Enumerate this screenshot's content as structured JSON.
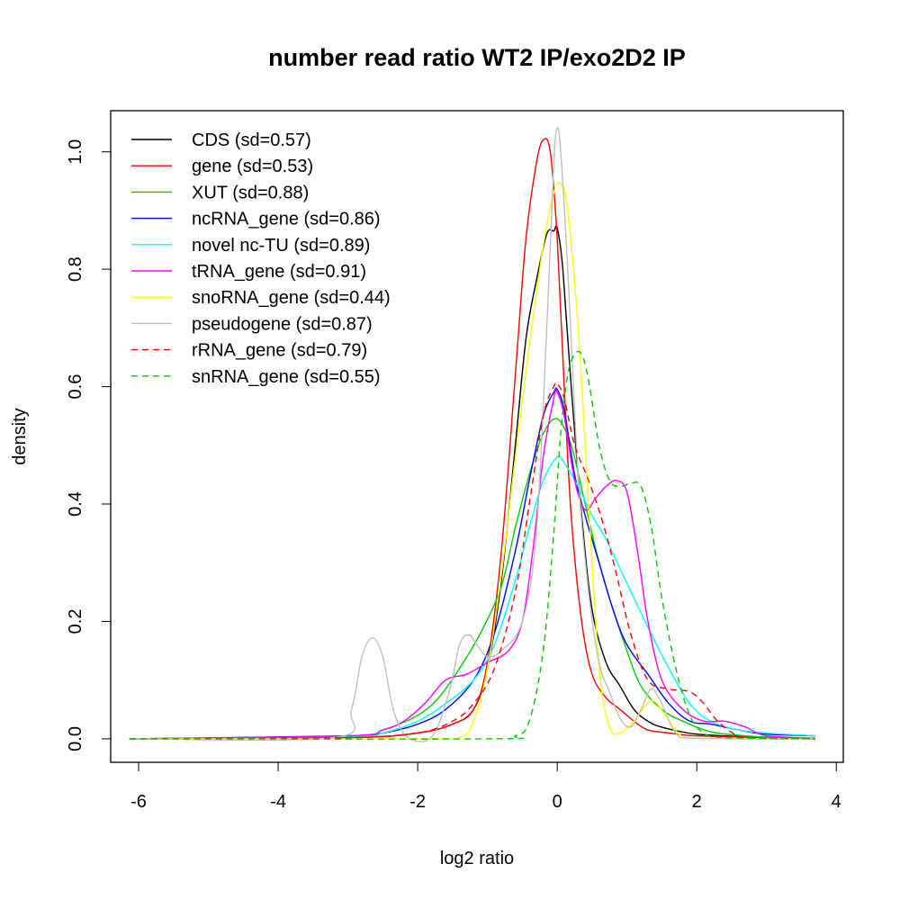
{
  "chart_data": {
    "type": "line",
    "title": "number read ratio WT2 IP/exo2D2 IP",
    "xlabel": "log2 ratio",
    "ylabel": "density",
    "xlim": [
      -6.4,
      4.1
    ],
    "ylim": [
      -0.04,
      1.07
    ],
    "xticks": [
      -6,
      -4,
      -2,
      0,
      2,
      4
    ],
    "xtick_labels": [
      "-6",
      "-4",
      "-2",
      "0",
      "2",
      "4"
    ],
    "yticks": [
      0.0,
      0.2,
      0.4,
      0.6,
      0.8,
      1.0
    ],
    "ytick_labels": [
      "0.0",
      "0.2",
      "0.4",
      "0.6",
      "0.8",
      "1.0"
    ],
    "grid": false,
    "legend_position": "top-left",
    "series": [
      {
        "name": "CDS (sd=0.57)",
        "color": "#000000",
        "dash": false,
        "x": [
          -6.13,
          -3,
          -2,
          -1.5,
          -1.2,
          -1.0,
          -0.8,
          -0.6,
          -0.45,
          -0.3,
          -0.15,
          -0.05,
          0.0,
          0.08,
          0.2,
          0.35,
          0.5,
          0.7,
          0.9,
          1.1,
          1.3,
          1.5,
          2.0,
          3.0,
          3.7
        ],
        "y": [
          0,
          0.002,
          0.01,
          0.025,
          0.05,
          0.12,
          0.27,
          0.5,
          0.68,
          0.78,
          0.86,
          0.865,
          0.87,
          0.8,
          0.6,
          0.38,
          0.22,
          0.13,
          0.09,
          0.05,
          0.03,
          0.02,
          0.008,
          0.002,
          0
        ]
      },
      {
        "name": "gene (sd=0.53)",
        "color": "#FF0000",
        "dash": false,
        "x": [
          -6.13,
          -3,
          -2,
          -1.5,
          -1.2,
          -1.0,
          -0.8,
          -0.6,
          -0.45,
          -0.3,
          -0.2,
          -0.1,
          0.0,
          0.1,
          0.2,
          0.35,
          0.5,
          0.7,
          0.9,
          1.1,
          1.3,
          1.6,
          2.0,
          3.0,
          3.7
        ],
        "y": [
          0,
          0.002,
          0.01,
          0.025,
          0.05,
          0.13,
          0.32,
          0.62,
          0.85,
          0.98,
          1.02,
          1.0,
          0.85,
          0.6,
          0.38,
          0.2,
          0.11,
          0.07,
          0.05,
          0.03,
          0.015,
          0.01,
          0.005,
          0.002,
          0
        ]
      },
      {
        "name": "XUT (sd=0.88)",
        "color": "#00CD00",
        "dash": false,
        "x": [
          -6.13,
          -3,
          -2.5,
          -2.0,
          -1.7,
          -1.4,
          -1.1,
          -0.8,
          -0.6,
          -0.4,
          -0.2,
          0.0,
          0.2,
          0.4,
          0.6,
          0.8,
          1.0,
          1.2,
          1.5,
          1.8,
          2.2,
          2.6,
          3.0,
          3.7
        ],
        "y": [
          0,
          0.005,
          0.015,
          0.04,
          0.07,
          0.12,
          0.18,
          0.26,
          0.36,
          0.45,
          0.52,
          0.545,
          0.5,
          0.4,
          0.3,
          0.22,
          0.15,
          0.09,
          0.05,
          0.03,
          0.012,
          0.006,
          0.003,
          0.001
        ]
      },
      {
        "name": "ncRNA_gene (sd=0.86)",
        "color": "#0000FF",
        "dash": false,
        "x": [
          -6.13,
          -3,
          -2.5,
          -2.0,
          -1.6,
          -1.2,
          -0.9,
          -0.6,
          -0.4,
          -0.2,
          -0.05,
          0.0,
          0.1,
          0.25,
          0.4,
          0.6,
          0.8,
          1.0,
          1.3,
          1.6,
          1.9,
          2.2,
          2.6,
          3.0,
          3.7
        ],
        "y": [
          0,
          0.005,
          0.01,
          0.025,
          0.05,
          0.1,
          0.18,
          0.32,
          0.44,
          0.55,
          0.59,
          0.595,
          0.56,
          0.45,
          0.38,
          0.3,
          0.22,
          0.16,
          0.11,
          0.06,
          0.03,
          0.025,
          0.015,
          0.008,
          0.005
        ]
      },
      {
        "name": "novel nc-TU (sd=0.89)",
        "color": "#00FFFF",
        "dash": false,
        "x": [
          -6.13,
          -3,
          -2.5,
          -2.0,
          -1.6,
          -1.2,
          -0.9,
          -0.6,
          -0.4,
          -0.2,
          0.0,
          0.1,
          0.3,
          0.5,
          0.7,
          0.9,
          1.1,
          1.3,
          1.6,
          1.9,
          2.2,
          2.6,
          3.0,
          3.7
        ],
        "y": [
          0,
          0.004,
          0.01,
          0.03,
          0.06,
          0.1,
          0.16,
          0.27,
          0.36,
          0.44,
          0.48,
          0.47,
          0.43,
          0.38,
          0.34,
          0.29,
          0.24,
          0.19,
          0.12,
          0.06,
          0.03,
          0.015,
          0.01,
          0.005
        ]
      },
      {
        "name": "tRNA_gene (sd=0.91)",
        "color": "#FF00FF",
        "dash": false,
        "x": [
          -6.13,
          -3,
          -2.5,
          -2.2,
          -1.9,
          -1.6,
          -1.3,
          -1.0,
          -0.7,
          -0.5,
          -0.35,
          -0.2,
          -0.05,
          0.0,
          0.1,
          0.25,
          0.4,
          0.55,
          0.7,
          0.85,
          1.0,
          1.15,
          1.3,
          1.5,
          1.8,
          2.1,
          2.4,
          2.7,
          3.0,
          3.7
        ],
        "y": [
          0,
          0.005,
          0.015,
          0.03,
          0.06,
          0.1,
          0.11,
          0.13,
          0.15,
          0.2,
          0.32,
          0.48,
          0.58,
          0.59,
          0.55,
          0.44,
          0.39,
          0.41,
          0.43,
          0.44,
          0.42,
          0.32,
          0.2,
          0.1,
          0.05,
          0.03,
          0.03,
          0.02,
          0.005,
          0.001
        ]
      },
      {
        "name": "snoRNA_gene (sd=0.44)",
        "color": "#FFFF00",
        "dash": false,
        "x": [
          -6.13,
          -2,
          -1.4,
          -1.2,
          -1.0,
          -0.8,
          -0.6,
          -0.4,
          -0.2,
          -0.05,
          0.05,
          0.15,
          0.3,
          0.45,
          0.6,
          0.75,
          0.9,
          1.1,
          1.35,
          1.55,
          1.75,
          2.0,
          3.7
        ],
        "y": [
          0,
          0,
          0.002,
          0.03,
          0.12,
          0.28,
          0.48,
          0.67,
          0.84,
          0.93,
          0.945,
          0.9,
          0.7,
          0.4,
          0.12,
          0.02,
          0.01,
          0.03,
          0.065,
          0.04,
          0.008,
          0.001,
          0
        ]
      },
      {
        "name": "pseudogene (sd=0.87)",
        "color": "#BEBEBE",
        "dash": false,
        "x": [
          -6.13,
          -3.2,
          -2.95,
          -2.8,
          -2.65,
          -2.5,
          -2.35,
          -2.15,
          -1.8,
          -1.55,
          -1.4,
          -1.27,
          -1.15,
          -1.0,
          -0.8,
          -0.5,
          -0.3,
          -0.15,
          -0.05,
          0.0,
          0.05,
          0.15,
          0.3,
          0.45,
          0.6,
          0.75,
          0.9,
          1.05,
          1.2,
          1.35,
          1.5,
          1.7,
          2.0,
          3.7
        ],
        "y": [
          0,
          0.002,
          0.05,
          0.14,
          0.172,
          0.14,
          0.05,
          0.003,
          0.003,
          0.08,
          0.16,
          0.177,
          0.16,
          0.14,
          0.15,
          0.2,
          0.35,
          0.7,
          0.98,
          1.04,
          1.0,
          0.8,
          0.45,
          0.25,
          0.13,
          0.08,
          0.035,
          0.02,
          0.05,
          0.085,
          0.06,
          0.01,
          0.001,
          0
        ]
      },
      {
        "name": "rRNA_gene (sd=0.79)",
        "color": "#FF0000",
        "dash": true,
        "x": [
          -6.13,
          -3,
          -2,
          -1.5,
          -1.2,
          -0.9,
          -0.6,
          -0.4,
          -0.2,
          -0.05,
          0.0,
          0.1,
          0.25,
          0.45,
          0.65,
          0.85,
          1.05,
          1.3,
          1.6,
          1.9,
          2.1,
          2.3,
          2.6,
          3.0,
          3.7
        ],
        "y": [
          0,
          0.002,
          0.01,
          0.03,
          0.06,
          0.12,
          0.25,
          0.4,
          0.55,
          0.6,
          0.605,
          0.58,
          0.5,
          0.44,
          0.37,
          0.28,
          0.18,
          0.1,
          0.085,
          0.08,
          0.06,
          0.03,
          0.005,
          0.001,
          0
        ]
      },
      {
        "name": "snRNA_gene (sd=0.55)",
        "color": "#00CD00",
        "dash": true,
        "x": [
          -6.13,
          -1.0,
          -0.6,
          -0.4,
          -0.2,
          -0.05,
          0.05,
          0.15,
          0.25,
          0.35,
          0.45,
          0.6,
          0.75,
          0.9,
          1.05,
          1.2,
          1.35,
          1.5,
          1.7,
          1.9,
          2.1,
          2.4,
          3.7
        ],
        "y": [
          0,
          0,
          0.005,
          0.03,
          0.15,
          0.35,
          0.52,
          0.62,
          0.655,
          0.655,
          0.61,
          0.5,
          0.44,
          0.43,
          0.435,
          0.43,
          0.36,
          0.24,
          0.12,
          0.04,
          0.01,
          0.002,
          0
        ]
      }
    ]
  }
}
